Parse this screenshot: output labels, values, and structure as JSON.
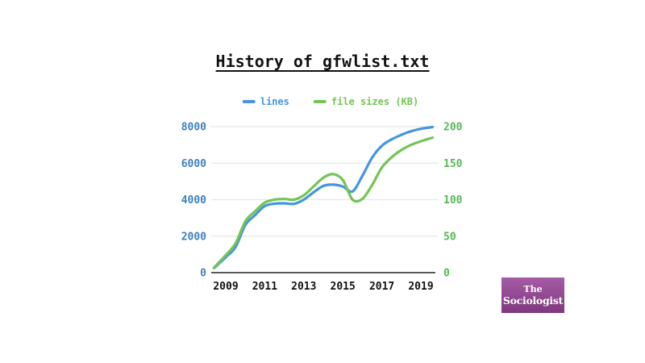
{
  "page": {
    "title": "History of gfwlist.txt",
    "background": "#ffffff"
  },
  "chart_data": {
    "type": "line",
    "title": "History of gfwlist.txt",
    "x": [
      2008.4,
      2009,
      2009.5,
      2010,
      2010.5,
      2011,
      2011.5,
      2012,
      2012.5,
      2013,
      2013.5,
      2014,
      2014.5,
      2015,
      2015.5,
      2016,
      2016.5,
      2017,
      2017.5,
      2018,
      2018.5,
      2019,
      2019.6
    ],
    "series": [
      {
        "name": "lines",
        "axis": "left",
        "color": "#4596dd",
        "values": [
          250,
          850,
          1400,
          2600,
          3150,
          3650,
          3780,
          3800,
          3770,
          4000,
          4400,
          4750,
          4820,
          4720,
          4450,
          5300,
          6300,
          6950,
          7300,
          7550,
          7750,
          7880,
          7980
        ]
      },
      {
        "name": "file sizes (KB)",
        "axis": "right",
        "color": "#74c455",
        "values": [
          7,
          24,
          40,
          70,
          84,
          96,
          100,
          101,
          100,
          106,
          118,
          130,
          135,
          127,
          100,
          101,
          120,
          144,
          158,
          168,
          175,
          180,
          185
        ]
      }
    ],
    "x_ticks": [
      2009,
      2011,
      2013,
      2015,
      2017,
      2019
    ],
    "left_axis": {
      "ticks": [
        0,
        2000,
        4000,
        6000,
        8000
      ],
      "range": [
        0,
        8000
      ],
      "color": "#3e7fc1"
    },
    "right_axis": {
      "ticks": [
        0,
        50,
        100,
        150,
        200
      ],
      "range": [
        0,
        200
      ],
      "color": "#57b757"
    },
    "grid": true,
    "grid_color": "#e7e7e7",
    "axis_color": "#222222",
    "x_label_color": "#111111",
    "legend_position": "top"
  },
  "logo": {
    "line1": "The",
    "line2": "Sociologist",
    "bg_top": "#a55ba5",
    "bg_bottom": "#7e3a7e",
    "text_color": "#ffffff"
  }
}
